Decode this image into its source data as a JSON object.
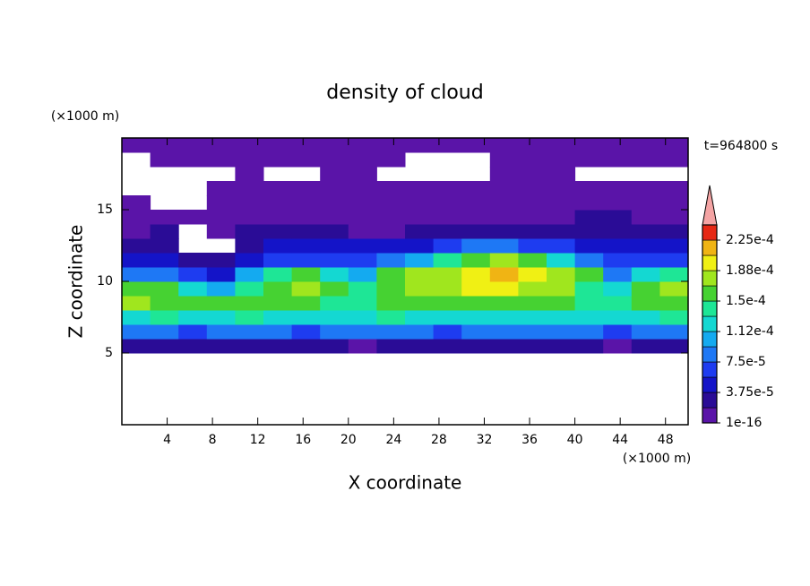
{
  "chart_data": {
    "type": "contour",
    "title": "density of cloud",
    "x_label": "X coordinate",
    "y_label": "Z coordinate",
    "x_unit": "(×1000 m)",
    "y_unit": "(×1000 m)",
    "time_label": "t=964800 s",
    "xlim": [
      0,
      50
    ],
    "ylim": [
      0,
      20
    ],
    "xticks": [
      4,
      8,
      12,
      16,
      20,
      24,
      28,
      32,
      36,
      40,
      44,
      48
    ],
    "yticks": [
      5,
      10,
      15
    ],
    "x": [
      1.25,
      3.75,
      6.25,
      8.75,
      11.25,
      13.75,
      16.25,
      18.75,
      21.25,
      23.75,
      26.25,
      28.75,
      31.25,
      33.75,
      36.25,
      38.75,
      41.25,
      43.75,
      46.25,
      48.75
    ],
    "z": [
      5.5,
      6.5,
      7.5,
      8.5,
      9.5,
      10.5,
      11.5,
      12.5,
      13.5,
      14.5,
      15.5,
      16.5,
      17.5,
      18.5,
      19.5
    ],
    "values": [
      [
        3e-05,
        3e-05,
        3e-05,
        3e-05,
        3e-05,
        3e-05,
        3e-05,
        3e-05,
        1e-05,
        3e-05,
        3e-05,
        3e-05,
        3e-05,
        3e-05,
        3e-05,
        3e-05,
        3e-05,
        1e-05,
        3e-05,
        3e-05
      ],
      [
        9e-05,
        9e-05,
        7e-05,
        9e-05,
        9e-05,
        9e-05,
        7e-05,
        9e-05,
        9e-05,
        9e-05,
        9e-05,
        7e-05,
        9e-05,
        9e-05,
        9e-05,
        9e-05,
        9e-05,
        7e-05,
        9e-05,
        9e-05
      ],
      [
        0.00012,
        0.00014,
        0.00012,
        0.00012,
        0.00014,
        0.00012,
        0.00012,
        0.00012,
        0.00012,
        0.00014,
        0.00012,
        0.00012,
        0.00012,
        0.00012,
        0.00012,
        0.00012,
        0.00012,
        0.00012,
        0.00012,
        0.00014
      ],
      [
        0.00018,
        0.00016,
        0.00016,
        0.00016,
        0.00016,
        0.00016,
        0.00016,
        0.00014,
        0.00014,
        0.00016,
        0.00016,
        0.00016,
        0.00016,
        0.00016,
        0.00016,
        0.00016,
        0.00014,
        0.00014,
        0.00016,
        0.00016
      ],
      [
        0.00016,
        0.00016,
        0.00012,
        0.00011,
        0.00014,
        0.00016,
        0.00018,
        0.00016,
        0.00014,
        0.00016,
        0.00018,
        0.00018,
        0.0002,
        0.0002,
        0.00018,
        0.00018,
        0.00014,
        0.00012,
        0.00016,
        0.00018
      ],
      [
        9e-05,
        9e-05,
        7e-05,
        5e-05,
        0.00011,
        0.00014,
        0.00016,
        0.00012,
        0.00011,
        0.00016,
        0.00018,
        0.00018,
        0.0002,
        0.00022,
        0.0002,
        0.00018,
        0.00016,
        9e-05,
        0.00012,
        0.00014
      ],
      [
        5e-05,
        5e-05,
        3e-05,
        3e-05,
        5e-05,
        7e-05,
        7e-05,
        7e-05,
        7e-05,
        9e-05,
        0.00011,
        0.00014,
        0.00016,
        0.00018,
        0.00016,
        0.00012,
        9e-05,
        7e-05,
        7e-05,
        7e-05
      ],
      [
        3e-05,
        3e-05,
        null,
        null,
        3e-05,
        5e-05,
        5e-05,
        5e-05,
        5e-05,
        5e-05,
        5e-05,
        7e-05,
        9e-05,
        9e-05,
        7e-05,
        7e-05,
        5e-05,
        5e-05,
        5e-05,
        5e-05
      ],
      [
        1e-05,
        3e-05,
        null,
        1e-05,
        3e-05,
        3e-05,
        3e-05,
        3e-05,
        1e-05,
        1e-05,
        3e-05,
        3e-05,
        3e-05,
        3e-05,
        3e-05,
        3e-05,
        3e-05,
        3e-05,
        3e-05,
        3e-05
      ],
      [
        1e-05,
        1e-05,
        1e-05,
        1e-05,
        1e-05,
        1e-05,
        1e-05,
        1e-05,
        1e-05,
        1e-05,
        1e-05,
        1e-05,
        1e-05,
        1e-05,
        1e-05,
        1e-05,
        3e-05,
        3e-05,
        1e-05,
        1e-05
      ],
      [
        1e-05,
        null,
        null,
        1e-05,
        1e-05,
        1e-05,
        1e-05,
        1e-05,
        1e-05,
        1e-05,
        1e-05,
        1e-05,
        1e-05,
        1e-05,
        1e-05,
        1e-05,
        1e-05,
        1e-05,
        1e-05,
        1e-05
      ],
      [
        null,
        null,
        null,
        1e-05,
        1e-05,
        1e-05,
        1e-05,
        1e-05,
        1e-05,
        1e-05,
        1e-05,
        1e-05,
        1e-05,
        1e-05,
        1e-05,
        1e-05,
        1e-05,
        1e-05,
        1e-05,
        1e-05
      ],
      [
        null,
        null,
        null,
        null,
        1e-05,
        null,
        null,
        1e-05,
        1e-05,
        null,
        null,
        null,
        null,
        1e-05,
        1e-05,
        1e-05,
        null,
        null,
        null,
        null
      ],
      [
        null,
        1e-05,
        1e-05,
        1e-05,
        1e-05,
        1e-05,
        1e-05,
        1e-05,
        1e-05,
        1e-05,
        null,
        null,
        null,
        1e-05,
        1e-05,
        1e-05,
        1e-05,
        1e-05,
        1e-05,
        1e-05
      ],
      [
        1e-05,
        1e-05,
        1e-05,
        1e-05,
        1e-05,
        1e-05,
        1e-05,
        1e-05,
        1e-05,
        1e-05,
        1e-05,
        1e-05,
        1e-05,
        1e-05,
        1e-05,
        1e-05,
        1e-05,
        1e-05,
        1e-05,
        1e-05
      ]
    ],
    "colorbar": {
      "levels": [
        1e-16,
        1.875e-05,
        3.75e-05,
        5.625e-05,
        7.5e-05,
        9.375e-05,
        0.0001125,
        0.00013125,
        0.00015,
        0.00016875,
        0.0001875,
        0.00020625,
        0.000225
      ],
      "colors": [
        "#5a14a8",
        "#2a0c96",
        "#1414c8",
        "#1e3cf0",
        "#1e78f5",
        "#14aaf0",
        "#14d8d2",
        "#1ee696",
        "#46d232",
        "#a0e61e",
        "#f0f014",
        "#f0b414",
        "#e62814"
      ],
      "lim": [
        0,
        0.00024375
      ],
      "over_color": "#f4a4a4",
      "ticks": [
        1e-16,
        {
          "value": 3.75e-05,
          "label": "3.75e-5"
        },
        {
          "value": 7.5e-05,
          "label": "7.5e-5"
        },
        {
          "value": 0.0001125,
          "label": "1.12e-4"
        },
        {
          "value": 0.00015,
          "label": "1.5e-4"
        },
        {
          "value": 0.0001875,
          "label": "1.88e-4"
        },
        {
          "value": 0.000225,
          "label": "2.25e-4"
        }
      ]
    }
  }
}
